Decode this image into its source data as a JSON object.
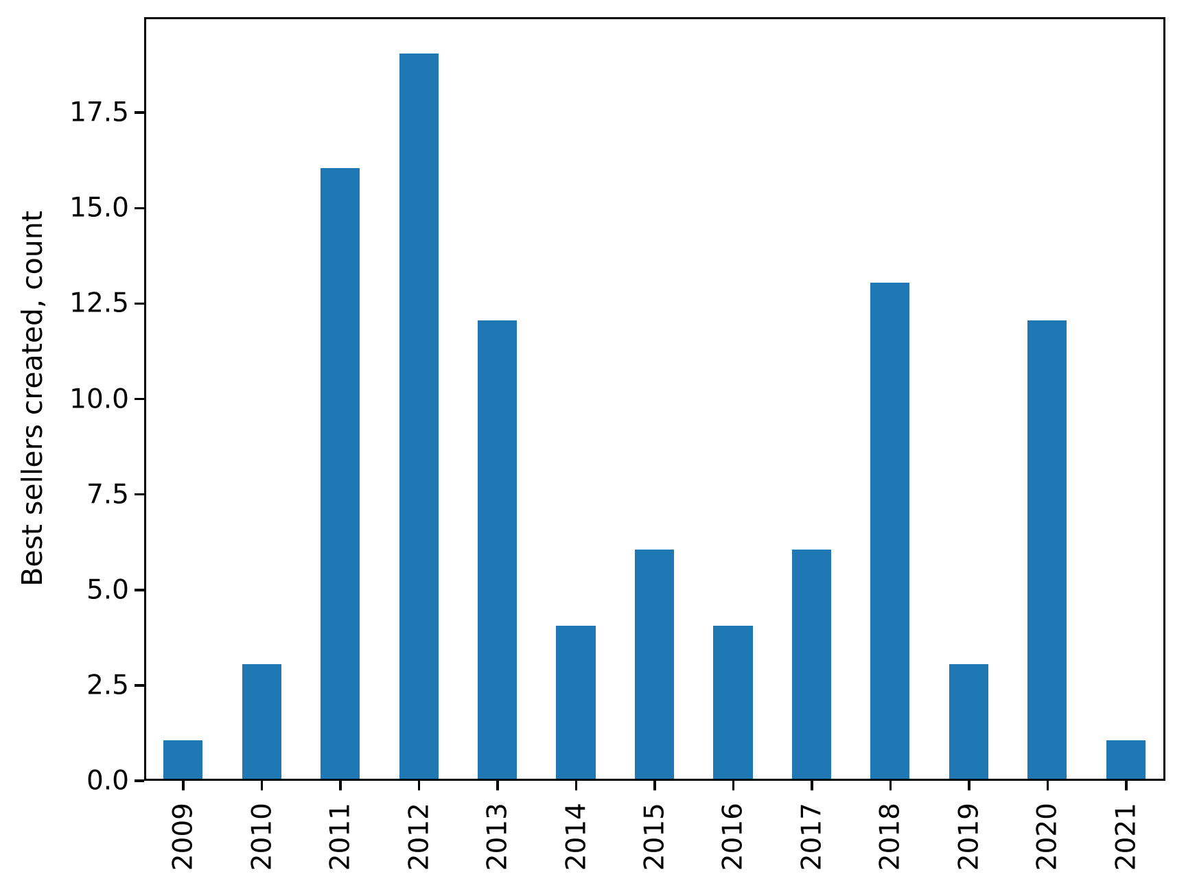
{
  "chart_data": {
    "type": "bar",
    "ylabel": "Best sellers created, count",
    "categories": [
      "2009",
      "2010",
      "2011",
      "2012",
      "2013",
      "2014",
      "2015",
      "2016",
      "2017",
      "2018",
      "2019",
      "2020",
      "2021"
    ],
    "values": [
      1,
      3,
      16,
      19,
      12,
      4,
      6,
      4,
      6,
      13,
      3,
      12,
      1
    ],
    "bar_color": "#1f77b4",
    "axis_color": "#000000",
    "text_color": "#000000",
    "yticks": [
      0.0,
      2.5,
      5.0,
      7.5,
      10.0,
      12.5,
      15.0,
      17.5
    ],
    "ytick_labels": [
      "0.0",
      "2.5",
      "5.0",
      "7.5",
      "10.0",
      "12.5",
      "15.0",
      "17.5"
    ],
    "ylim": [
      0,
      20
    ],
    "bar_width_fraction": 0.5,
    "x_tick_rotation": 90,
    "grid": false,
    "legend": "none"
  }
}
